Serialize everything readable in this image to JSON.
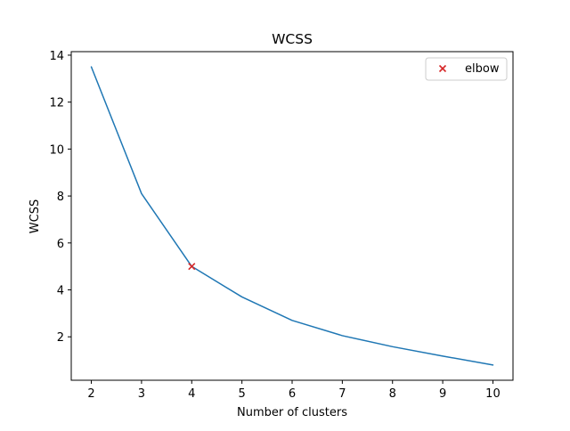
{
  "chart_data": {
    "type": "line",
    "title": "WCSS",
    "xlabel": "Number of clusters",
    "ylabel": "WCSS",
    "x": [
      2,
      3,
      4,
      5,
      6,
      7,
      8,
      9,
      10
    ],
    "series": [
      {
        "values": [
          13.5,
          8.1,
          5.0,
          3.7,
          2.7,
          2.05,
          1.58,
          1.18,
          0.8
        ],
        "color": "#1f77b4"
      }
    ],
    "markers": [
      {
        "name": "elbow",
        "x": 4,
        "y": 5.0,
        "marker": "x",
        "color": "#d62728"
      }
    ],
    "xlim": [
      1.6,
      10.4
    ],
    "ylim": [
      0.15,
      14.15
    ],
    "xticks": [
      2,
      3,
      4,
      5,
      6,
      7,
      8,
      9,
      10
    ],
    "yticks": [
      2,
      4,
      6,
      8,
      10,
      12,
      14
    ],
    "grid": false,
    "legend": {
      "position": "upper right",
      "entries": [
        {
          "label": "elbow",
          "marker": "x",
          "color": "#d62728"
        }
      ]
    }
  }
}
